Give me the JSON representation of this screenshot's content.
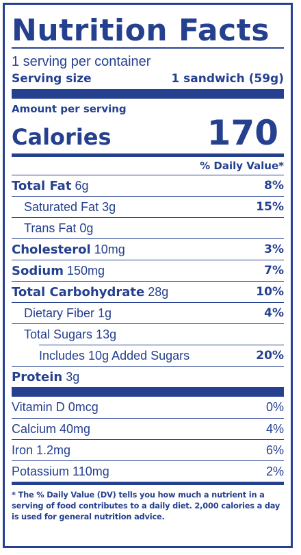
{
  "title": "Nutrition Facts",
  "servings_per_container": "1 serving per container",
  "serving_size": {
    "label": "Serving size",
    "value": "1 sandwich (59g)"
  },
  "amount_per_serving": "Amount per serving",
  "calories": {
    "label": "Calories",
    "value": "170"
  },
  "dv_header": "% Daily Value*",
  "nutrients": [
    {
      "name": "Total Fat",
      "amount": "6g",
      "dv": "8%"
    },
    {
      "name": "Saturated Fat",
      "amount": "3g",
      "dv": "15%"
    },
    {
      "name": "Trans Fat",
      "amount": "0g",
      "dv": ""
    },
    {
      "name": "Cholesterol",
      "amount": "10mg",
      "dv": "3%"
    },
    {
      "name": "Sodium",
      "amount": "150mg",
      "dv": "7%"
    },
    {
      "name": "Total Carbohydrate",
      "amount": "28g",
      "dv": "10%"
    },
    {
      "name": "Dietary Fiber",
      "amount": "1g",
      "dv": "4%"
    },
    {
      "name": "Total Sugars",
      "amount": "13g",
      "dv": ""
    },
    {
      "name": "Includes 10g Added Sugars",
      "amount": "",
      "dv": "20%"
    },
    {
      "name": "Protein",
      "amount": "3g",
      "dv": ""
    }
  ],
  "vitamins": [
    {
      "name": "Vitamin D 0mcg",
      "dv": "0%"
    },
    {
      "name": "Calcium 40mg",
      "dv": "4%"
    },
    {
      "name": "Iron 1.2mg",
      "dv": "6%"
    },
    {
      "name": "Potassium 110mg",
      "dv": "2%"
    }
  ],
  "footnote": "* The % Daily Value (DV) tells you how much a nutrient in a serving of food contributes to a daily diet. 2,000 calories a day is used for general nutrition advice.",
  "colors": {
    "ink": "#25408f",
    "background": "#ffffff"
  }
}
